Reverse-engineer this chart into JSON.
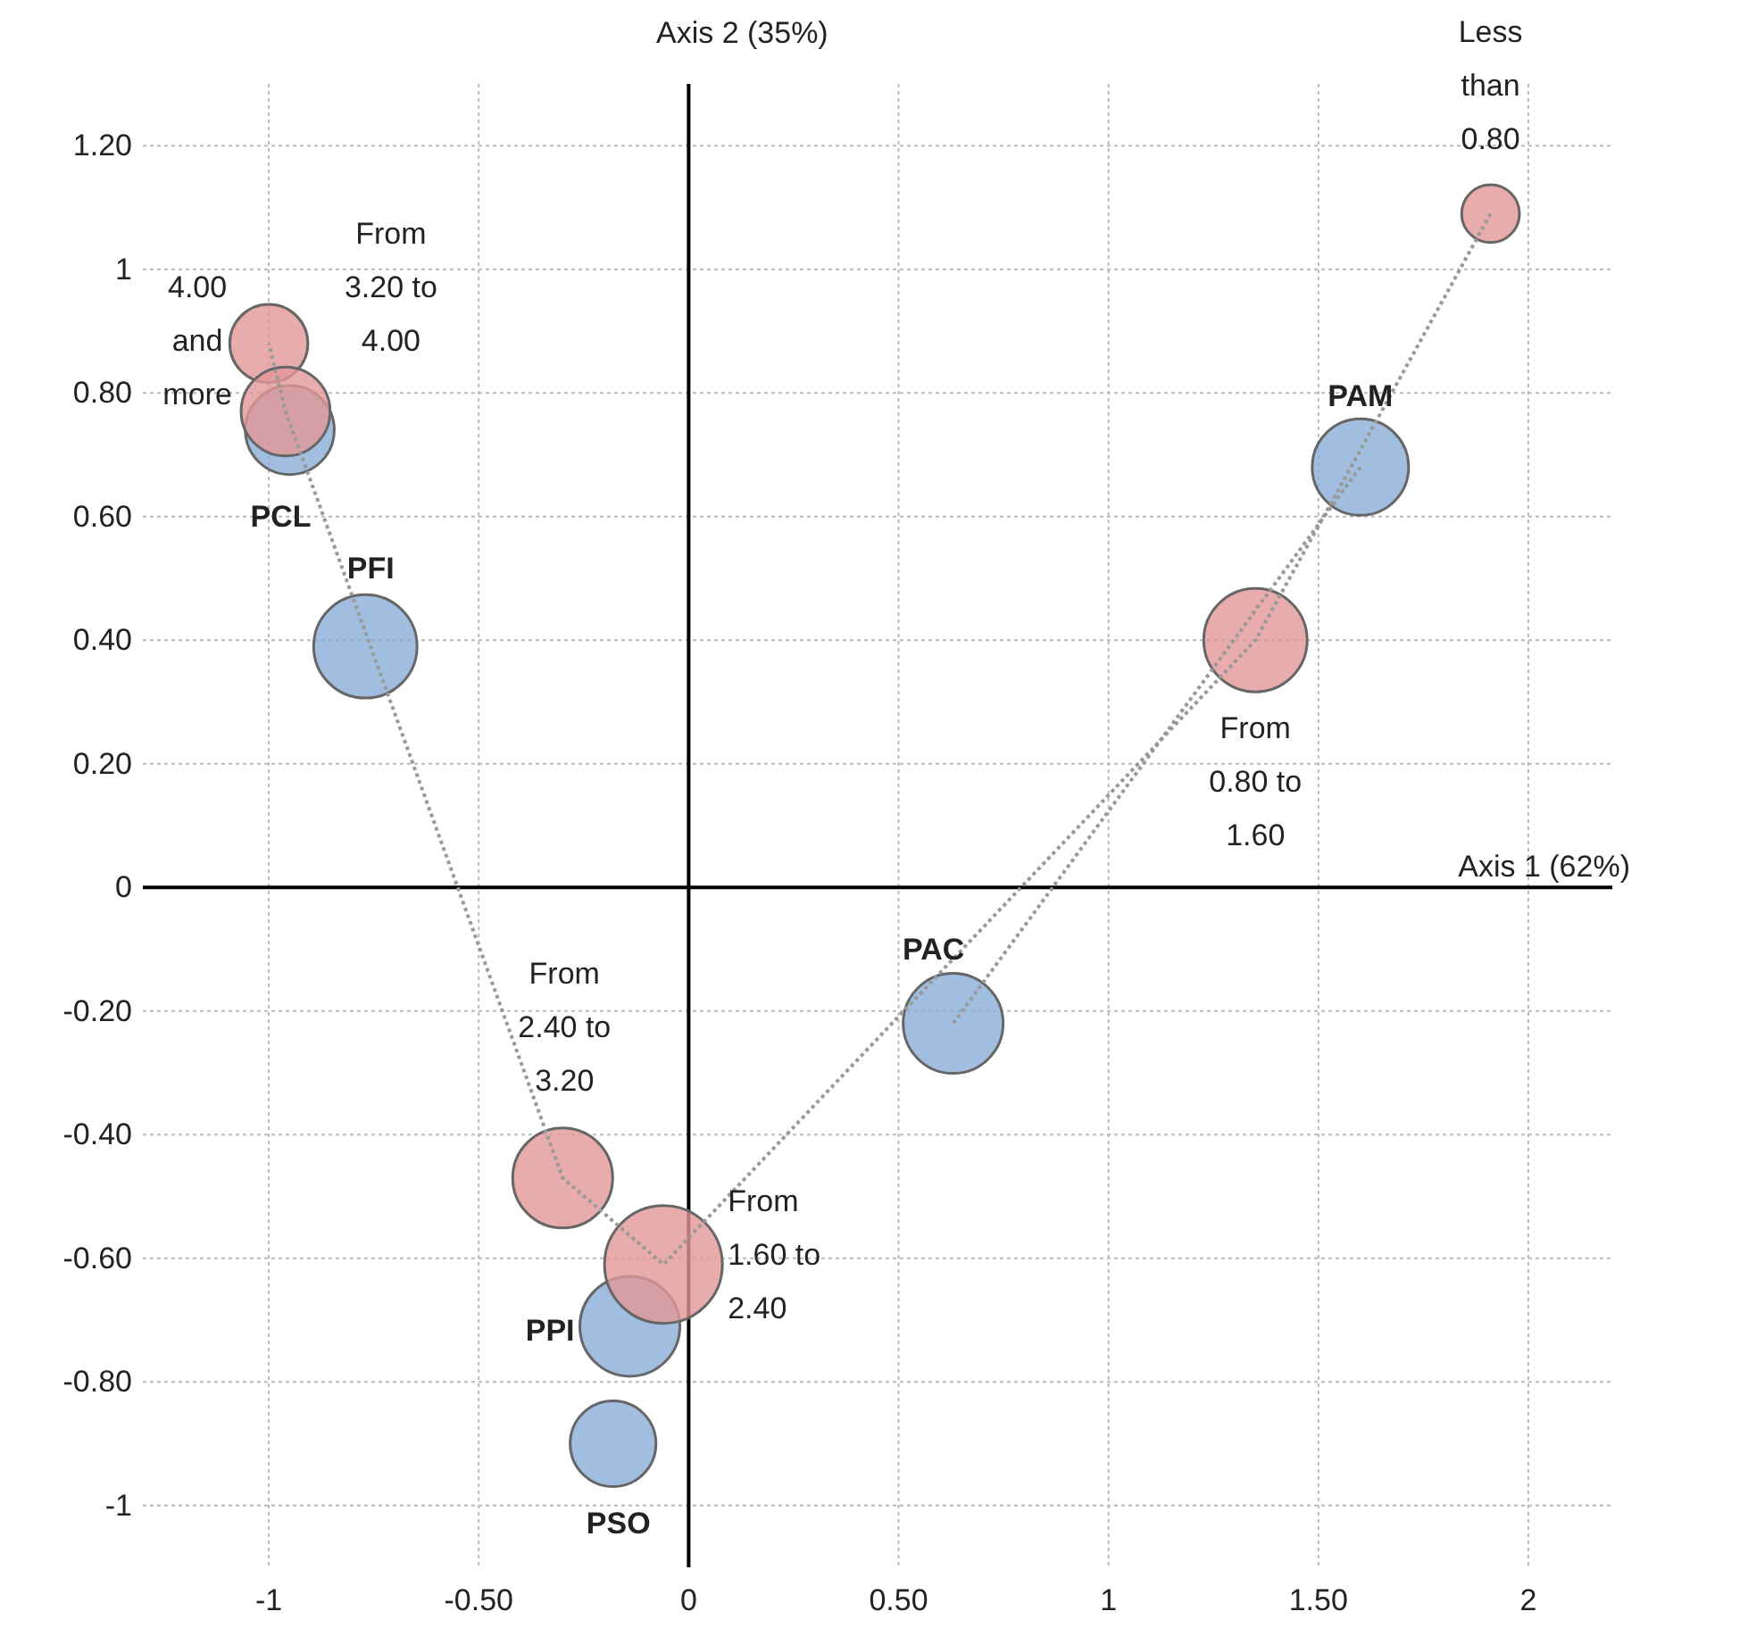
{
  "chart_data": {
    "type": "bubble",
    "xlabel": "Axis 1 (62%)",
    "ylabel": "Axis 2 (35%)",
    "xlim": [
      -1.3,
      2.2
    ],
    "ylim": [
      -1.1,
      1.3
    ],
    "xticks": [
      -1,
      {
        "value": -0.5,
        "label": "-0.50"
      },
      0,
      {
        "value": 0.5,
        "label": "0.50"
      },
      1,
      {
        "value": 1.5,
        "label": "1.50"
      },
      2
    ],
    "yticks": [
      -1,
      {
        "value": -0.8,
        "label": "-0.80"
      },
      {
        "value": -0.6,
        "label": "-0.60"
      },
      {
        "value": -0.4,
        "label": "-0.40"
      },
      {
        "value": -0.2,
        "label": "-0.20"
      },
      0,
      {
        "value": 0.2,
        "label": "0.20"
      },
      {
        "value": 0.4,
        "label": "0.40"
      },
      {
        "value": 0.6,
        "label": "0.60"
      },
      {
        "value": 0.8,
        "label": "0.80"
      },
      1,
      {
        "value": 1.2,
        "label": "1.20"
      }
    ],
    "grid": true,
    "line_style": "dotted",
    "series": [
      {
        "type": "line",
        "color": "#999999",
        "x": [
          1.91,
          1.35,
          -0.06,
          -0.3,
          -0.96,
          -1.0
        ],
        "values": [
          1.09,
          0.4,
          -0.61,
          -0.47,
          0.77,
          0.88
        ]
      },
      {
        "type": "line",
        "color": "#999999",
        "x": [
          1.6,
          0.63
        ],
        "values": [
          0.68,
          -0.22
        ]
      },
      {
        "color": "#8aaed8",
        "x": [
          -0.95,
          -0.77,
          1.6,
          0.63,
          -0.14,
          -0.18
        ],
        "values": [
          0.74,
          0.39,
          0.68,
          -0.22,
          -0.71,
          -0.9
        ],
        "sizes": [
          0.57,
          0.77,
          0.67,
          0.72,
          0.72,
          0.53
        ]
      },
      {
        "color": "#e39797",
        "x": [
          -1.0,
          -0.96,
          1.91,
          1.35,
          -0.3,
          -0.06
        ],
        "values": [
          0.88,
          0.77,
          1.09,
          0.4,
          -0.47,
          -0.61
        ],
        "sizes": [
          0.44,
          0.57,
          0.24,
          0.77,
          0.72,
          1
        ]
      }
    ],
    "annotations": [
      {
        "text": "PCL",
        "x": -0.95,
        "y": 0.74
      },
      {
        "text": "PFI",
        "x": -0.77,
        "y": 0.39
      },
      {
        "text": "PAM",
        "x": 1.6,
        "y": 0.68
      },
      {
        "text": "PAC",
        "x": 0.63,
        "y": -0.22
      },
      {
        "text": "PPI",
        "x": -0.14,
        "y": -0.71
      },
      {
        "text": "PSO",
        "x": -0.18,
        "y": -0.9
      },
      {
        "text": "4.00\nand\nmore",
        "x": -1.0,
        "y": 0.88
      },
      {
        "text": "From\n3.20 to\n4.00",
        "x": -0.96,
        "y": 0.77
      },
      {
        "text": "Less\nthan\n0.80",
        "x": 1.91,
        "y": 1.09
      },
      {
        "text": "From\n0.80 to\n1.60",
        "x": 1.35,
        "y": 0.4
      },
      {
        "text": "From\n2.40 to\n3.20",
        "x": -0.3,
        "y": -0.47
      },
      {
        "text": "From\n1.60 to\n2.40",
        "x": -0.06,
        "y": -0.61
      }
    ]
  }
}
